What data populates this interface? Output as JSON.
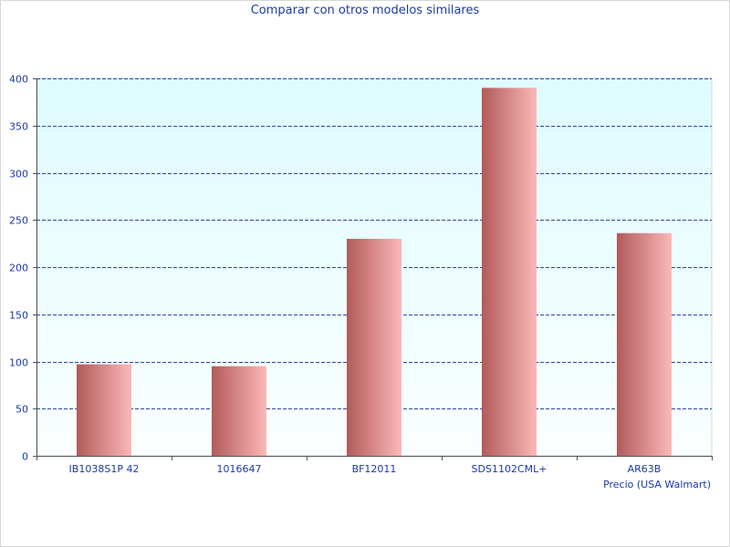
{
  "chart_data": {
    "type": "bar",
    "title": "Comparar con otros modelos similares",
    "xlabel": "Precio (USA Walmart)",
    "ylabel": "",
    "categories": [
      "IB1038S1P 42",
      "1016647",
      "BF12011",
      "SDS1102CML+",
      "AR63B"
    ],
    "values": [
      97,
      95,
      230,
      390,
      236
    ],
    "ylim": [
      0,
      400
    ],
    "yticks": [
      "0",
      "50",
      "100",
      "150",
      "200",
      "250",
      "300",
      "350",
      "400"
    ],
    "grid": true,
    "grid_style": "dashed-horizontal",
    "colors": {
      "plot_bg_top": "#ddfcff",
      "plot_bg_bottom": "#fbfeff",
      "bar_dark": "#b35a5a",
      "bar_light": "#fbb8b8",
      "grid": "#2a4a9a",
      "text": "#1a3aa6"
    }
  }
}
